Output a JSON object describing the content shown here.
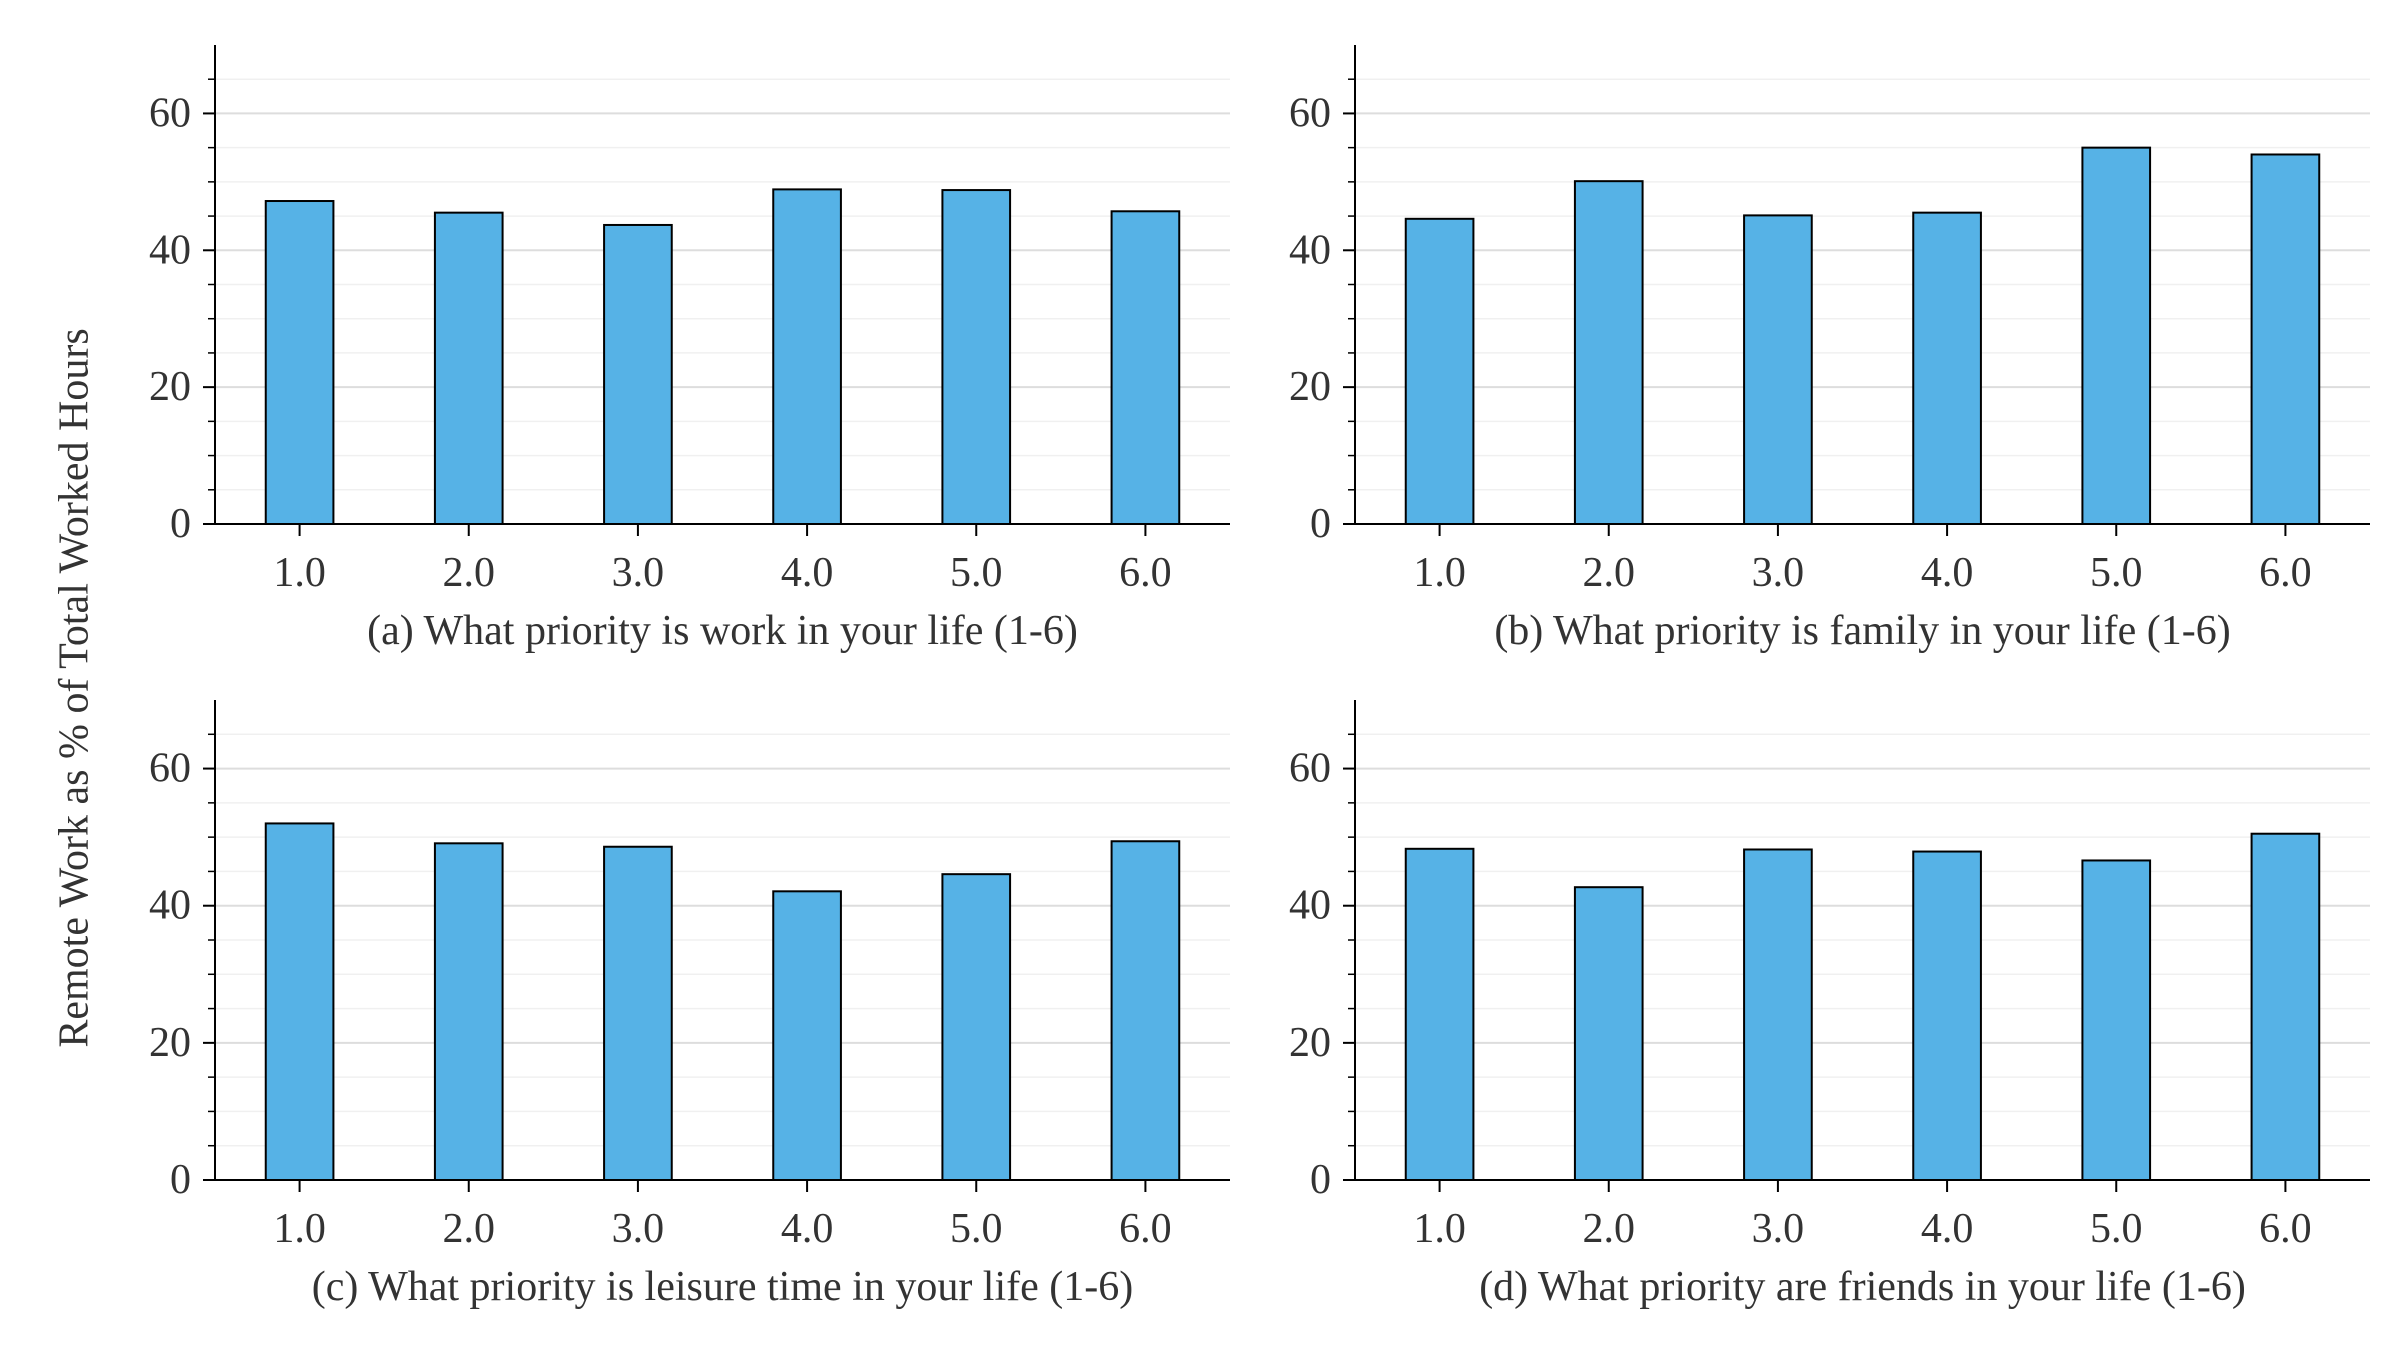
{
  "figure": {
    "ylabel": "Remote Work as % of Total Worked Hours"
  },
  "style": {
    "bar_color": "#56b2e6",
    "bar_edge": "#000000",
    "grid_major": "#dddddd",
    "grid_minor": "#f0f0f0",
    "axis_color": "#000000"
  },
  "chart_data": [
    {
      "type": "bar",
      "title": "(a) What priority is work in your life (1-6)",
      "categories": [
        "1.0",
        "2.0",
        "3.0",
        "4.0",
        "5.0",
        "6.0"
      ],
      "values": [
        47.2,
        45.5,
        43.7,
        48.9,
        48.8,
        45.7
      ],
      "ylim": [
        0,
        70
      ],
      "yticks": [
        "0",
        "20",
        "40",
        "60"
      ],
      "ylabel": "Remote Work as % of Total Worked Hours",
      "grid": true
    },
    {
      "type": "bar",
      "title": "(b) What priority is family in your life (1-6)",
      "categories": [
        "1.0",
        "2.0",
        "3.0",
        "4.0",
        "5.0",
        "6.0"
      ],
      "values": [
        44.6,
        50.1,
        45.1,
        45.5,
        55.0,
        54.0
      ],
      "ylim": [
        0,
        70
      ],
      "yticks": [
        "0",
        "20",
        "40",
        "60"
      ],
      "ylabel": "Remote Work as % of Total Worked Hours",
      "grid": true
    },
    {
      "type": "bar",
      "title": "(c) What priority is leisure time in your life (1-6)",
      "categories": [
        "1.0",
        "2.0",
        "3.0",
        "4.0",
        "5.0",
        "6.0"
      ],
      "values": [
        52.0,
        49.1,
        48.6,
        42.1,
        44.6,
        49.4
      ],
      "ylim": [
        0,
        70
      ],
      "yticks": [
        "0",
        "20",
        "40",
        "60"
      ],
      "ylabel": "Remote Work as % of Total Worked Hours",
      "grid": true
    },
    {
      "type": "bar",
      "title": "(d) What priority are friends in your life (1-6)",
      "categories": [
        "1.0",
        "2.0",
        "3.0",
        "4.0",
        "5.0",
        "6.0"
      ],
      "values": [
        48.3,
        42.7,
        48.2,
        47.9,
        46.6,
        50.5
      ],
      "ylim": [
        0,
        70
      ],
      "yticks": [
        "0",
        "20",
        "40",
        "60"
      ],
      "ylabel": "Remote Work as % of Total Worked Hours",
      "grid": true
    }
  ]
}
